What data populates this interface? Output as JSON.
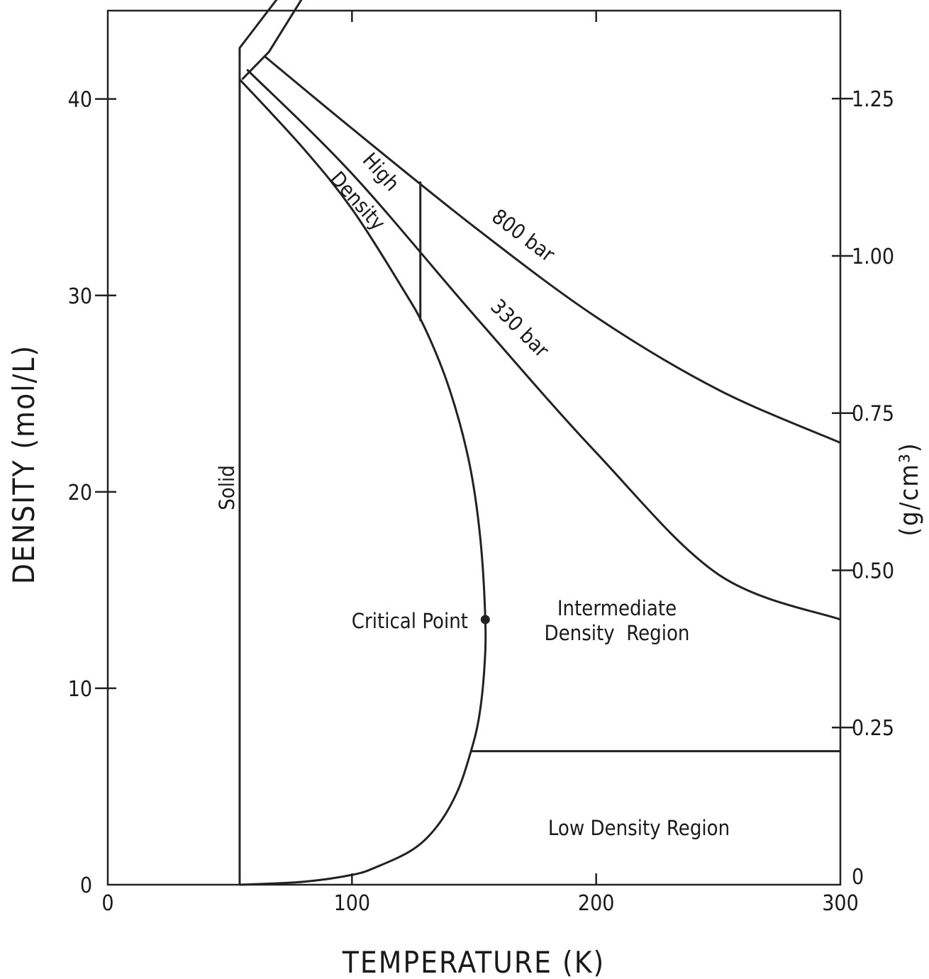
{
  "chart_data": {
    "type": "line",
    "xlabel": "TEMPERATURE (K)",
    "ylabel": "DENSITY (mol/L)",
    "y2label": "(g/cm³)",
    "xlim": [
      0,
      300
    ],
    "ylim": [
      0,
      44.5
    ],
    "y2lim": [
      0,
      1.39
    ],
    "x_ticks": [
      0,
      100,
      200,
      300
    ],
    "x_tick_labels": [
      "0",
      "100",
      "200",
      "300"
    ],
    "y_ticks": [
      0,
      10,
      20,
      30,
      40
    ],
    "y_tick_labels": [
      "0",
      "10",
      "20",
      "30",
      "40"
    ],
    "y2_ticks": [
      0,
      0.25,
      0.5,
      0.75,
      1.0,
      1.25
    ],
    "y2_tick_labels": [
      "0",
      "0.25",
      "0.50",
      "0.75",
      "1.00",
      "1.25"
    ],
    "grid": false,
    "series": [
      {
        "name": "Solid",
        "points": [
          [
            54,
            0
          ],
          [
            54,
            42.6
          ],
          [
            70,
            45.2
          ]
        ]
      },
      {
        "points": [
          [
            55,
            41
          ],
          [
            66,
            42.4
          ],
          [
            80,
            45.2
          ]
        ]
      },
      {
        "points": [
          [
            54,
            41
          ],
          [
            80,
            37.5
          ],
          [
            100,
            34.4
          ],
          [
            120,
            30.5
          ],
          [
            130,
            28.3
          ],
          [
            140,
            25.2
          ],
          [
            148,
            21.5
          ],
          [
            152.5,
            17.7
          ],
          [
            154.6,
            13.5
          ],
          [
            154.2,
            11
          ],
          [
            152,
            8.5
          ],
          [
            148.5,
            6.7
          ],
          [
            143,
            4.7
          ],
          [
            135,
            3
          ],
          [
            125,
            1.8
          ],
          [
            110,
            0.9
          ],
          [
            100,
            0.5
          ],
          [
            80,
            0.15
          ],
          [
            54,
            0
          ]
        ]
      },
      {
        "name": "330 bar",
        "points": [
          [
            57,
            41.5
          ],
          [
            100,
            36.2
          ],
          [
            150,
            29
          ],
          [
            200,
            22
          ],
          [
            250,
            15.8
          ],
          [
            300,
            13.5
          ]
        ]
      },
      {
        "name": "800 bar",
        "points": [
          [
            64,
            42.2
          ],
          [
            100,
            38.5
          ],
          [
            150,
            33.5
          ],
          [
            200,
            28.9
          ],
          [
            250,
            25.2
          ],
          [
            300,
            22.5
          ]
        ]
      },
      {
        "points": [
          [
            128,
            35.8
          ],
          [
            128,
            28.7
          ]
        ]
      },
      {
        "points": [
          [
            149,
            6.8
          ],
          [
            300,
            6.8
          ]
        ]
      }
    ],
    "critical_point": {
      "x": 154.6,
      "y": 13.5
    },
    "annotations": {
      "solid": "Solid",
      "high": "High",
      "density": "Density",
      "bar800": "800 bar",
      "bar330": "330 bar",
      "critical_point": "Critical Point",
      "intermediate_1": "Intermediate",
      "intermediate_2": "Density  Region",
      "low": "Low Density Region"
    }
  }
}
